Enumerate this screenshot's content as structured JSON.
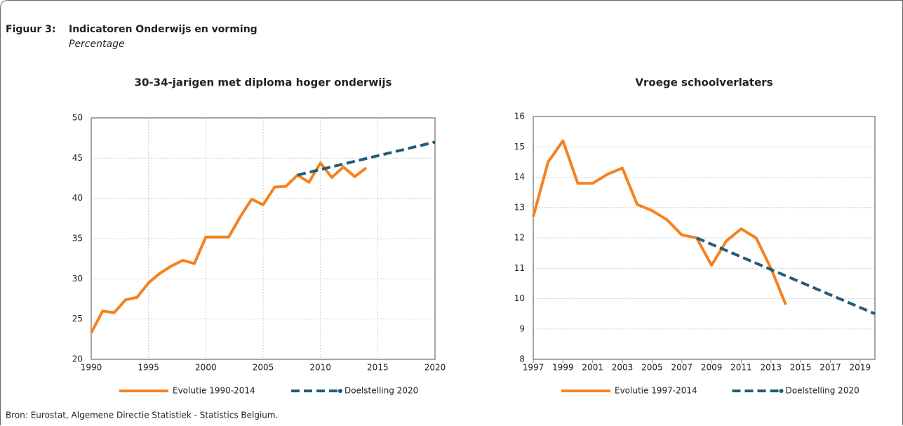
{
  "figure": {
    "label": "Figuur 3:",
    "title": "Indicatoren Onderwijs en vorming",
    "subtitle": "Percentage"
  },
  "source": "Bron: Eurostat, Algemene Directie Statistiek - Statistics Belgium.",
  "chart_data": [
    {
      "type": "line",
      "title": "30-34-jarigen met diploma hoger onderwijs",
      "xlim": [
        1990,
        2020
      ],
      "xticks": [
        1990,
        1995,
        2000,
        2005,
        2010,
        2015,
        2020
      ],
      "ylim": [
        20,
        50
      ],
      "yticks": [
        20,
        25,
        30,
        35,
        40,
        45,
        50
      ],
      "grid": "both",
      "legend": "bottom",
      "series": [
        {
          "name": "Evolutie 1990-2014",
          "color": "#f5821f",
          "dashed": false,
          "x": [
            1990,
            1991,
            1992,
            1993,
            1994,
            1995,
            1996,
            1997,
            1998,
            1999,
            2000,
            2001,
            2002,
            2003,
            2004,
            2005,
            2006,
            2007,
            2008,
            2009,
            2010,
            2011,
            2012,
            2013,
            2014
          ],
          "values": [
            23.3,
            26.0,
            25.8,
            27.4,
            27.7,
            29.5,
            30.7,
            31.6,
            32.3,
            31.9,
            35.2,
            35.2,
            35.2,
            37.7,
            39.9,
            39.2,
            41.4,
            41.5,
            42.9,
            42.0,
            44.4,
            42.6,
            43.9,
            42.7,
            43.8
          ]
        },
        {
          "name": "Doelstelling 2020",
          "color": "#1f5c7a",
          "dashed": true,
          "x": [
            2008,
            2020
          ],
          "values": [
            42.9,
            47.0
          ]
        }
      ]
    },
    {
      "type": "line",
      "title": "Vroege schoolverlaters",
      "xlim": [
        1997,
        2020
      ],
      "xticks": [
        1997,
        1999,
        2001,
        2003,
        2005,
        2007,
        2009,
        2011,
        2013,
        2015,
        2017,
        2019
      ],
      "ylim": [
        8,
        16
      ],
      "yticks": [
        8,
        9,
        10,
        11,
        12,
        13,
        14,
        15,
        16
      ],
      "grid": "y",
      "legend": "bottom",
      "series": [
        {
          "name": "Evolutie 1997-2014",
          "color": "#f5821f",
          "dashed": false,
          "x": [
            1997,
            1998,
            1999,
            2000,
            2001,
            2002,
            2003,
            2004,
            2005,
            2006,
            2007,
            2008,
            2009,
            2010,
            2011,
            2012,
            2013,
            2014
          ],
          "values": [
            12.7,
            14.5,
            15.2,
            13.8,
            13.8,
            14.1,
            14.3,
            13.1,
            12.9,
            12.6,
            12.1,
            12.0,
            11.1,
            11.9,
            12.3,
            12.0,
            11.0,
            9.8
          ]
        },
        {
          "name": "Doelstelling 2020",
          "color": "#1f5c7a",
          "dashed": true,
          "x": [
            2008,
            2020
          ],
          "values": [
            12.0,
            9.5
          ]
        }
      ]
    }
  ]
}
